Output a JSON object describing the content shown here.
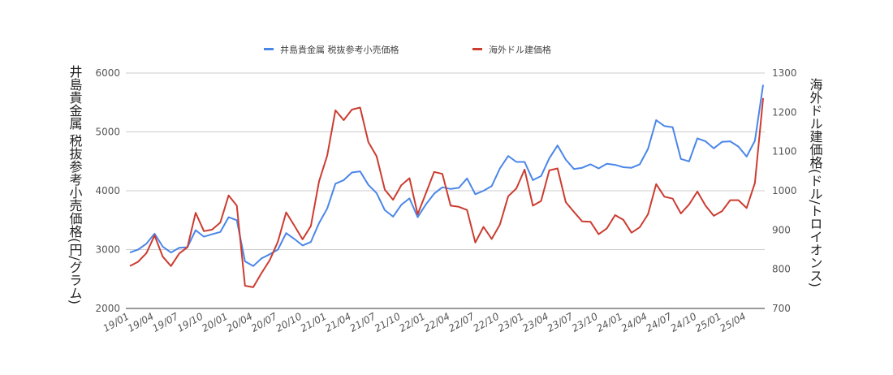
{
  "chart_data": {
    "type": "line",
    "xlabel": "",
    "y_left_label": "井島貴金属 税抜参考小売価格(円/グラム)",
    "y_right_label": "海外ドル建価格(ドル/トロイオンス)",
    "y_left_lim": [
      2000,
      6000
    ],
    "y_left_ticks": [
      2000,
      3000,
      4000,
      5000,
      6000
    ],
    "y_right_lim": [
      700,
      1300
    ],
    "y_right_ticks": [
      700,
      800,
      900,
      1000,
      1100,
      1200,
      1300
    ],
    "x_tick_labels": [
      "19/01",
      "19/04",
      "19/07",
      "19/10",
      "20/01",
      "20/04",
      "20/07",
      "20/10",
      "21/01",
      "21/04",
      "21/07",
      "21/10",
      "22/01",
      "22/04",
      "22/07",
      "22/10",
      "23/01",
      "23/04",
      "23/07",
      "23/10",
      "24/01",
      "24/04",
      "24/07",
      "24/10",
      "25/01",
      "25/04"
    ],
    "x_tick_step": 3,
    "legend_position": "top",
    "grid": true,
    "series": [
      {
        "name": "井島貴金属 税抜参考小売価格",
        "axis": "left",
        "color": "#4a86e8",
        "values": [
          2950,
          3000,
          3100,
          3270,
          3050,
          2950,
          3030,
          3040,
          3330,
          3220,
          3260,
          3300,
          3550,
          3500,
          2800,
          2720,
          2850,
          2920,
          3000,
          3280,
          3180,
          3070,
          3130,
          3450,
          3700,
          4120,
          4180,
          4310,
          4330,
          4100,
          3960,
          3670,
          3560,
          3760,
          3870,
          3550,
          3770,
          3950,
          4060,
          4030,
          4050,
          4210,
          3940,
          4000,
          4080,
          4380,
          4590,
          4490,
          4490,
          4180,
          4250,
          4550,
          4770,
          4530,
          4370,
          4390,
          4450,
          4380,
          4460,
          4440,
          4400,
          4390,
          4450,
          4710,
          5200,
          5100,
          5080,
          4540,
          4500,
          4890,
          4840,
          4720,
          4830,
          4840,
          4750,
          4580,
          4850,
          5800
        ]
      },
      {
        "name": "海外ドル建価格",
        "axis": "right",
        "color": "#cc3c30",
        "values": [
          808,
          819,
          841,
          886,
          832,
          808,
          840,
          856,
          944,
          897,
          901,
          919,
          988,
          962,
          758,
          754,
          790,
          823,
          870,
          945,
          911,
          876,
          910,
          1024,
          1090,
          1205,
          1180,
          1207,
          1212,
          1124,
          1088,
          1003,
          977,
          1014,
          1032,
          940,
          994,
          1048,
          1043,
          962,
          959,
          951,
          868,
          908,
          877,
          914,
          986,
          1006,
          1054,
          962,
          974,
          1052,
          1057,
          971,
          946,
          922,
          921,
          889,
          904,
          938,
          926,
          893,
          907,
          940,
          1017,
          985,
          980,
          942,
          965,
          998,
          962,
          936,
          948,
          976,
          976,
          956,
          1020,
          1236
        ]
      }
    ]
  }
}
